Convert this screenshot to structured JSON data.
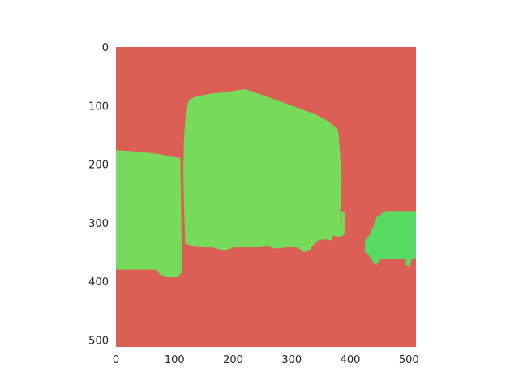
{
  "chart_data": {
    "type": "heatmap",
    "title": "",
    "xlabel": "",
    "ylabel": "",
    "xlim": [
      0,
      512
    ],
    "ylim": [
      512,
      0
    ],
    "xticks": [
      0,
      100,
      200,
      300,
      400,
      500
    ],
    "yticks": [
      0,
      100,
      200,
      300,
      400,
      500
    ],
    "grid": false,
    "classes": [
      {
        "color": "#dc5f56"
      },
      {
        "color": "#76db5a"
      },
      {
        "color": "#58db62"
      }
    ],
    "regions": [
      {
        "class": 1,
        "polygon": [
          [
            0,
            176
          ],
          [
            42,
            179
          ],
          [
            75,
            183
          ],
          [
            110,
            190
          ],
          [
            112,
            340
          ],
          [
            112,
            385
          ],
          [
            105,
            393
          ],
          [
            85,
            393
          ],
          [
            75,
            388
          ],
          [
            68,
            380
          ],
          [
            0,
            380
          ]
        ]
      },
      {
        "class": 1,
        "polygon": [
          [
            120,
            105
          ],
          [
            125,
            90
          ],
          [
            135,
            85
          ],
          [
            160,
            80
          ],
          [
            200,
            75
          ],
          [
            220,
            72
          ],
          [
            250,
            82
          ],
          [
            300,
            100
          ],
          [
            340,
            115
          ],
          [
            360,
            125
          ],
          [
            378,
            140
          ],
          [
            380,
            150
          ],
          [
            385,
            220
          ],
          [
            383,
            280
          ],
          [
            384,
            300
          ],
          [
            388,
            310
          ],
          [
            388,
            322
          ],
          [
            380,
            324
          ],
          [
            370,
            322
          ],
          [
            368,
            330
          ],
          [
            355,
            328
          ],
          [
            345,
            330
          ],
          [
            335,
            340
          ],
          [
            330,
            348
          ],
          [
            320,
            350
          ],
          [
            310,
            342
          ],
          [
            300,
            342
          ],
          [
            290,
            342
          ],
          [
            270,
            344
          ],
          [
            260,
            340
          ],
          [
            245,
            342
          ],
          [
            200,
            342
          ],
          [
            185,
            348
          ],
          [
            175,
            345
          ],
          [
            165,
            342
          ],
          [
            150,
            342
          ],
          [
            130,
            340
          ],
          [
            118,
            335
          ],
          [
            115,
            220
          ],
          [
            116,
            160
          ],
          [
            118,
            130
          ]
        ]
      },
      {
        "class": 1,
        "polygon": [
          [
            385,
            280
          ],
          [
            390,
            280
          ],
          [
            390,
            320
          ],
          [
            386,
            320
          ]
        ]
      },
      {
        "class": 2,
        "polygon": [
          [
            445,
            290
          ],
          [
            460,
            280
          ],
          [
            512,
            280
          ],
          [
            512,
            360
          ],
          [
            505,
            362
          ],
          [
            500,
            375
          ],
          [
            495,
            372
          ],
          [
            495,
            362
          ],
          [
            450,
            362
          ],
          [
            445,
            372
          ],
          [
            440,
            370
          ],
          [
            435,
            360
          ],
          [
            425,
            350
          ],
          [
            425,
            330
          ],
          [
            432,
            322
          ],
          [
            440,
            305
          ]
        ]
      }
    ]
  }
}
